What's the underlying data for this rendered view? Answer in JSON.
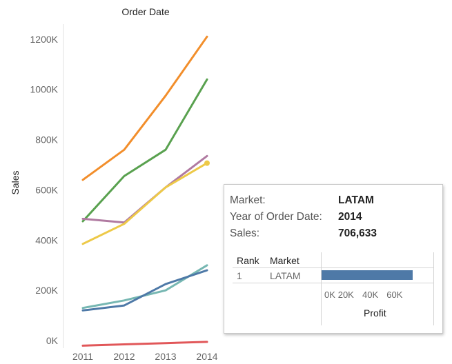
{
  "chart_data": {
    "type": "line",
    "title": "Order Date",
    "xlabel": "",
    "ylabel": "Sales",
    "x": [
      "2011",
      "2012",
      "2013",
      "2014"
    ],
    "ylim": [
      -30000,
      1260000
    ],
    "yticks": [
      0,
      200000,
      400000,
      600000,
      800000,
      1000000,
      1200000
    ],
    "ytick_labels": [
      "0K",
      "200K",
      "400K",
      "600K",
      "800K",
      "1000K",
      "1200K"
    ],
    "grid": false,
    "series": [
      {
        "color": "#f28e2b",
        "values": [
          640000,
          760000,
          975000,
          1210000
        ]
      },
      {
        "color": "#59a14f",
        "values": [
          475000,
          655000,
          760000,
          1040000
        ]
      },
      {
        "color": "#b07aa1",
        "values": [
          485000,
          470000,
          610000,
          735000
        ]
      },
      {
        "color": "#edc948",
        "values": [
          385000,
          465000,
          610000,
          706633
        ]
      },
      {
        "color": "#76b7b2",
        "values": [
          130000,
          160000,
          200000,
          300000
        ]
      },
      {
        "color": "#4e79a7",
        "values": [
          120000,
          140000,
          225000,
          280000
        ]
      },
      {
        "color": "#e15759",
        "values": [
          -20000,
          -15000,
          -10000,
          -5000
        ]
      }
    ],
    "highlight": {
      "series_index": 3,
      "point_index": 3
    }
  },
  "tooltip": {
    "market_label": "Market:",
    "market_value": "LATAM",
    "year_label": "Year of Order Date:",
    "year_value": "2014",
    "sales_label": "Sales:",
    "sales_value": "706,633",
    "table": {
      "rank_header": "Rank",
      "market_header": "Market",
      "rank_value": "1",
      "market_value": "LATAM",
      "profit_value": 75000,
      "axis_max": 85000,
      "axis_ticks": [
        "0K",
        "20K",
        "40K",
        "60K"
      ],
      "axis_tick_values": [
        0,
        20000,
        40000,
        60000
      ],
      "axis_title": "Profit",
      "bar_color": "#4e79a7"
    }
  }
}
